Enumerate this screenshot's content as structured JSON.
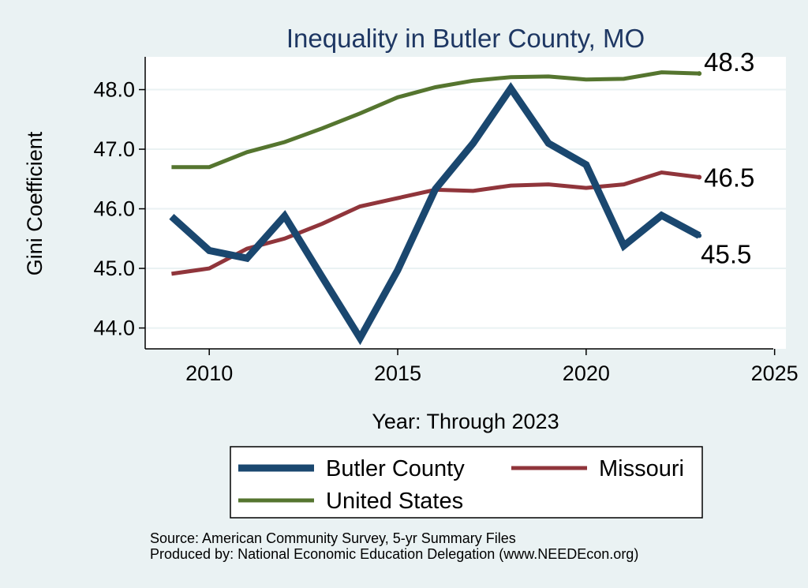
{
  "chart_data": {
    "type": "line",
    "title": "Inequality in Butler County, MO",
    "xlabel": "Year: Through 2023",
    "ylabel": "Gini Coefficient",
    "xlim": [
      2008.3,
      2025.3
    ],
    "ylim": [
      43.65,
      48.55
    ],
    "xticks": [
      2010,
      2015,
      2020,
      2025
    ],
    "xtick_labels": [
      "2010",
      "2015",
      "2020",
      "2025"
    ],
    "yticks": [
      44,
      45,
      46,
      47,
      48
    ],
    "ytick_labels": [
      "44.0",
      "45.0",
      "46.0",
      "47.0",
      "48.0"
    ],
    "grid": true,
    "legend_position": "bottom",
    "series": [
      {
        "name": "Butler County",
        "color": "#1a476f",
        "x": [
          2009,
          2010,
          2011,
          2012,
          2013,
          2014,
          2015,
          2016,
          2017,
          2018,
          2019,
          2020,
          2021,
          2022,
          2023
        ],
        "values": [
          45.87,
          45.3,
          45.17,
          45.88,
          44.85,
          43.83,
          44.97,
          46.33,
          47.1,
          48.02,
          47.1,
          46.74,
          45.38,
          45.89,
          45.55
        ],
        "end_label": "45.5"
      },
      {
        "name": "Missouri",
        "color": "#90353b",
        "x": [
          2009,
          2010,
          2011,
          2012,
          2013,
          2014,
          2015,
          2016,
          2017,
          2018,
          2019,
          2020,
          2021,
          2022,
          2023
        ],
        "values": [
          44.91,
          45.0,
          45.33,
          45.5,
          45.75,
          46.04,
          46.18,
          46.32,
          46.3,
          46.39,
          46.41,
          46.35,
          46.41,
          46.61,
          46.53
        ],
        "end_label": "46.5"
      },
      {
        "name": "United States",
        "color": "#55752f",
        "x": [
          2009,
          2010,
          2011,
          2012,
          2013,
          2014,
          2015,
          2016,
          2017,
          2018,
          2019,
          2020,
          2021,
          2022,
          2023
        ],
        "values": [
          46.7,
          46.7,
          46.95,
          47.12,
          47.35,
          47.6,
          47.87,
          48.04,
          48.15,
          48.21,
          48.22,
          48.17,
          48.18,
          48.29,
          48.27
        ],
        "end_label": "48.3"
      }
    ],
    "notes": [
      "Source: American Community Survey, 5-yr Summary Files",
      "Produced by: National Economic Education Delegation (www.NEEDEcon.org)"
    ]
  }
}
